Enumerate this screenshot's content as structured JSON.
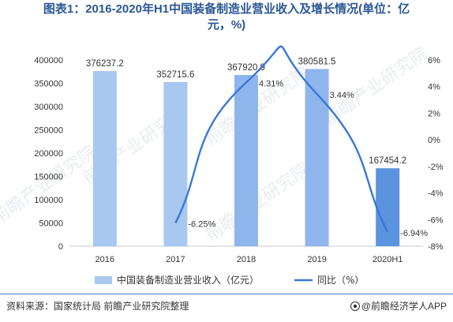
{
  "title_line1": "图表1：2016-2020年H1中国装备制造业营业收入及增长情况(单位：亿",
  "title_line2": "元，%)",
  "source": "资料来源：国家统计局 前瞻产业研究院整理",
  "brand": "@前瞻经济学人APP",
  "watermark": "前瞻产业研究院",
  "colors": {
    "title": "#2b5797",
    "bar_light": "#a8c8f0",
    "bar_mid": "#8fb6ec",
    "bar_dark": "#5b93de",
    "line": "#3a78d8",
    "axis_text": "#333333",
    "rule": "#3a7bd5"
  },
  "chart_data": {
    "type": "bar",
    "categories": [
      "2016",
      "2017",
      "2018",
      "2019",
      "2020H1"
    ],
    "series": [
      {
        "name": "中国装备制造业营业收入（亿元）",
        "type": "bar",
        "axis": "left",
        "values": [
          376237.2,
          352715.6,
          367920.9,
          380581.5,
          167454.2
        ],
        "labels": [
          "376237.2",
          "352715.6",
          "367920.9",
          "380581.5",
          "167454.2"
        ]
      },
      {
        "name": "同比（%）",
        "type": "line",
        "axis": "right",
        "values": [
          null,
          -6.25,
          4.31,
          3.44,
          -6.94
        ],
        "labels": [
          "",
          "-6.25%",
          "4.31%",
          "3.44%",
          "-6.94%"
        ]
      }
    ],
    "y_left": {
      "min": 0,
      "max": 400000,
      "ticks": [
        "0",
        "50000",
        "100000",
        "150000",
        "200000",
        "250000",
        "300000",
        "350000",
        "400000"
      ]
    },
    "y_right": {
      "min": -8,
      "max": 6,
      "ticks": [
        "-8%",
        "-6%",
        "-4%",
        "-2%",
        "0%",
        "2%",
        "4%",
        "6%"
      ]
    },
    "grid": false,
    "legend_position": "bottom"
  }
}
